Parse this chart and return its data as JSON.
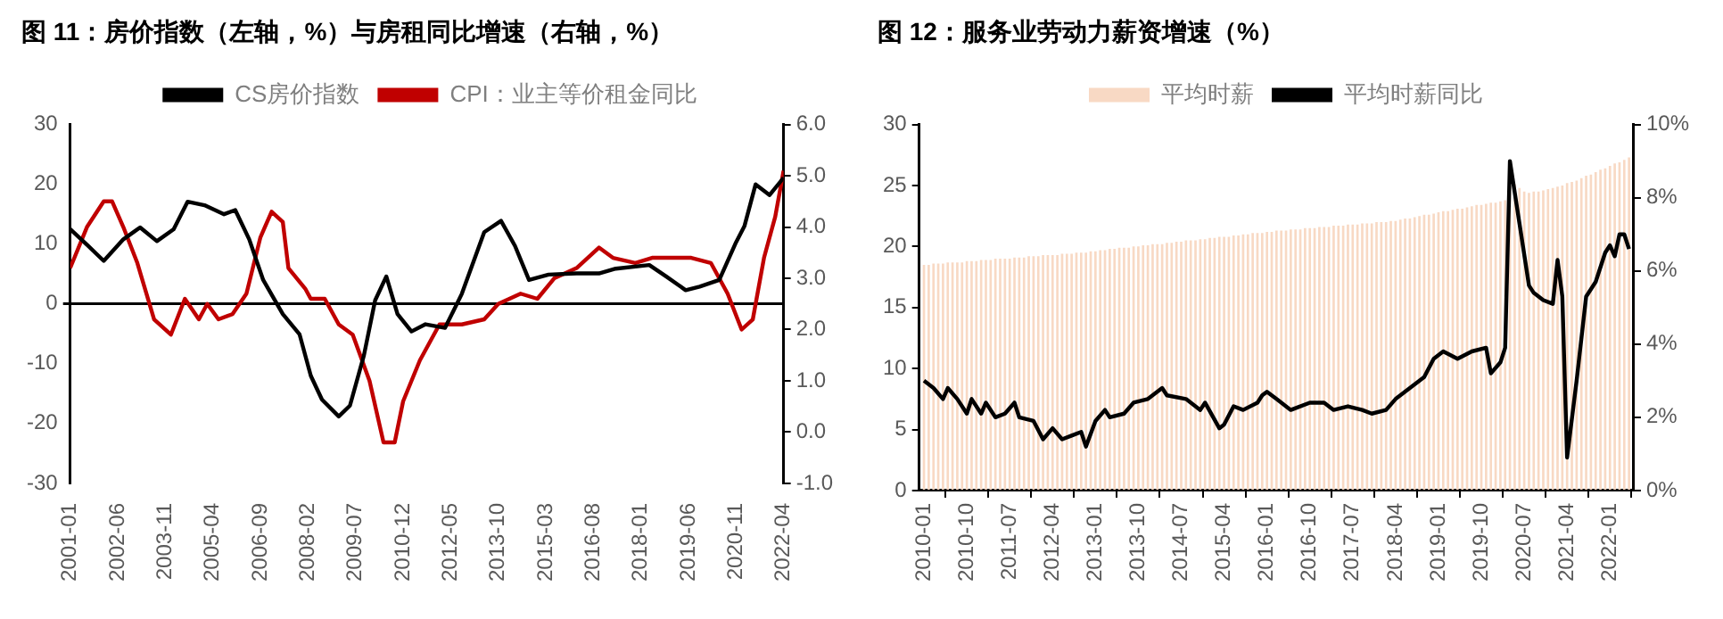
{
  "chart_data": [
    {
      "type": "line",
      "title": "图 11：房价指数（左轴，%）与房租同比增速（右轴，%）",
      "legend": "top",
      "xlim": [
        "2001-01",
        "2022-04"
      ],
      "xticks": [
        "2001-01",
        "2002-06",
        "2003-11",
        "2005-04",
        "2006-09",
        "2008-02",
        "2009-07",
        "2010-12",
        "2012-05",
        "2013-10",
        "2015-03",
        "2016-08",
        "2018-01",
        "2019-06",
        "2020-11",
        "2022-04"
      ],
      "ylim": [
        -30,
        30
      ],
      "yticks": [
        -30,
        -20,
        -10,
        0,
        10,
        20,
        30
      ],
      "y2lim": [
        -1,
        6
      ],
      "y2ticks": [
        {
          "value": -1,
          "label": "-1.0"
        },
        {
          "value": 0,
          "label": "0.0"
        },
        {
          "value": 1,
          "label": "1.0"
        },
        {
          "value": 2,
          "label": "2.0"
        },
        {
          "value": 3,
          "label": "3.0"
        },
        {
          "value": 4,
          "label": "4.0"
        },
        {
          "value": 5,
          "label": "5.0"
        },
        {
          "value": 6,
          "label": "6.0"
        }
      ],
      "series": [
        {
          "name": "CS房价指数",
          "color": "#000000",
          "x": [
            "2001-01",
            "2001-07",
            "2002-01",
            "2002-08",
            "2003-02",
            "2003-08",
            "2004-02",
            "2004-07",
            "2005-01",
            "2005-08",
            "2005-12",
            "2006-05",
            "2006-10",
            "2007-05",
            "2007-11",
            "2008-03",
            "2008-07",
            "2009-01",
            "2009-05",
            "2009-10",
            "2010-02",
            "2010-06",
            "2010-10",
            "2011-03",
            "2011-08",
            "2012-03",
            "2012-09",
            "2013-05",
            "2013-11",
            "2014-04",
            "2014-09",
            "2015-04",
            "2016-02",
            "2016-10",
            "2017-04",
            "2018-04",
            "2018-10",
            "2019-05",
            "2019-10",
            "2020-05",
            "2020-11",
            "2021-02",
            "2021-06",
            "2021-11",
            "2022-04"
          ],
          "values": [
            12.5,
            9.9,
            7.2,
            10.8,
            12.8,
            10.5,
            12.5,
            17.1,
            16.5,
            15,
            15.7,
            10.8,
            4,
            -1.7,
            -5.1,
            -12,
            -16,
            -18.8,
            -17,
            -8.6,
            0.6,
            4.6,
            -1.7,
            -4.6,
            -3.4,
            -4,
            1.7,
            12,
            13.9,
            9.7,
            4,
            4.9,
            5.1,
            5.1,
            5.9,
            6.5,
            4.6,
            2.3,
            2.9,
            4,
            10.3,
            13,
            20,
            18.2,
            21.1
          ]
        },
        {
          "name": "CPI：业主等价租金同比",
          "color": "#c00000",
          "axis": "y2",
          "x": [
            "2001-01",
            "2001-07",
            "2002-01",
            "2002-04",
            "2002-08",
            "2003-01",
            "2003-07",
            "2004-01",
            "2004-06",
            "2004-11",
            "2005-02",
            "2005-06",
            "2005-11",
            "2006-04",
            "2006-09",
            "2007-01",
            "2007-05",
            "2007-07",
            "2008-01",
            "2008-03",
            "2008-08",
            "2009-01",
            "2009-06",
            "2009-12",
            "2010-05",
            "2010-09",
            "2010-12",
            "2011-06",
            "2012-01",
            "2012-09",
            "2013-05",
            "2013-10",
            "2014-06",
            "2014-12",
            "2015-06",
            "2016-02",
            "2016-10",
            "2017-03",
            "2017-11",
            "2018-05",
            "2018-11",
            "2019-07",
            "2020-02",
            "2020-08",
            "2021-01",
            "2021-05",
            "2021-09",
            "2022-01",
            "2022-04"
          ],
          "values": [
            3.2,
            4.0,
            4.5,
            4.5,
            4.0,
            3.3,
            2.2,
            1.9,
            2.6,
            2.2,
            2.5,
            2.2,
            2.3,
            2.7,
            3.8,
            4.3,
            4.1,
            3.2,
            2.8,
            2.6,
            2.6,
            2.1,
            1.9,
            1.0,
            -0.2,
            -0.2,
            0.6,
            1.4,
            2.1,
            2.1,
            2.2,
            2.5,
            2.7,
            2.6,
            3.0,
            3.2,
            3.6,
            3.4,
            3.3,
            3.4,
            3.4,
            3.4,
            3.3,
            2.7,
            2.0,
            2.2,
            3.4,
            4.2,
            5.1
          ]
        }
      ]
    },
    {
      "type": "bar",
      "title": "图 12：服务业劳动力薪资增速（%）",
      "legend": "top",
      "x": [
        "2010-01",
        "2010-02",
        "2010-03",
        "2010-04",
        "2010-05",
        "2010-06",
        "2010-07",
        "2010-08",
        "2010-09",
        "2010-10",
        "2010-11",
        "2010-12",
        "2011-01",
        "2011-02",
        "2011-03",
        "2011-04",
        "2011-05",
        "2011-06",
        "2011-07",
        "2011-08",
        "2011-09",
        "2011-10",
        "2011-11",
        "2011-12",
        "2012-01",
        "2012-02",
        "2012-03",
        "2012-04",
        "2012-05",
        "2012-06",
        "2012-07",
        "2012-08",
        "2012-09",
        "2012-10",
        "2012-11",
        "2012-12",
        "2013-01",
        "2013-02",
        "2013-03",
        "2013-04",
        "2013-05",
        "2013-06",
        "2013-07",
        "2013-08",
        "2013-09",
        "2013-10",
        "2013-11",
        "2013-12",
        "2014-01",
        "2014-02",
        "2014-03",
        "2014-04",
        "2014-05",
        "2014-06",
        "2014-07",
        "2014-08",
        "2014-09",
        "2014-10",
        "2014-11",
        "2014-12",
        "2015-01",
        "2015-02",
        "2015-03",
        "2015-04",
        "2015-05",
        "2015-06",
        "2015-07",
        "2015-08",
        "2015-09",
        "2015-10",
        "2015-11",
        "2015-12",
        "2016-01",
        "2016-02",
        "2016-03",
        "2016-04",
        "2016-05",
        "2016-06",
        "2016-07",
        "2016-08",
        "2016-09",
        "2016-10",
        "2016-11",
        "2016-12",
        "2017-01",
        "2017-02",
        "2017-03",
        "2017-04",
        "2017-05",
        "2017-06",
        "2017-07",
        "2017-08",
        "2017-09",
        "2017-10",
        "2017-11",
        "2017-12",
        "2018-01",
        "2018-02",
        "2018-03",
        "2018-04",
        "2018-05",
        "2018-06",
        "2018-07",
        "2018-08",
        "2018-09",
        "2018-10",
        "2018-11",
        "2018-12",
        "2019-01",
        "2019-02",
        "2019-03",
        "2019-04",
        "2019-05",
        "2019-06",
        "2019-07",
        "2019-08",
        "2019-09",
        "2019-10",
        "2019-11",
        "2019-12",
        "2020-01",
        "2020-02",
        "2020-03",
        "2020-04",
        "2020-05",
        "2020-06",
        "2020-07",
        "2020-08",
        "2020-09",
        "2020-10",
        "2020-11",
        "2020-12",
        "2021-01",
        "2021-02",
        "2021-03",
        "2021-04",
        "2021-05",
        "2021-06",
        "2021-07",
        "2021-08",
        "2021-09",
        "2021-10",
        "2021-11",
        "2021-12",
        "2022-01",
        "2022-02",
        "2022-03",
        "2022-04",
        "2022-05"
      ],
      "xlim": [
        "2009-12",
        "2022-06"
      ],
      "xticks": [
        "2010-01",
        "2010-10",
        "2011-07",
        "2012-04",
        "2013-01",
        "2013-10",
        "2014-07",
        "2015-04",
        "2016-01",
        "2016-10",
        "2017-07",
        "2018-04",
        "2019-01",
        "2019-10",
        "2020-07",
        "2021-04",
        "2022-01"
      ],
      "ylim": [
        0,
        30
      ],
      "yticks": [
        0,
        5,
        10,
        15,
        20,
        25,
        30
      ],
      "y2lim": [
        0,
        10
      ],
      "y2ticks": [
        {
          "value": 0,
          "label": "0%"
        },
        {
          "value": 2,
          "label": "2%"
        },
        {
          "value": 4,
          "label": "4%"
        },
        {
          "value": 6,
          "label": "6%"
        },
        {
          "value": 8,
          "label": "8%"
        },
        {
          "value": 10,
          "label": "10%"
        }
      ],
      "series": [
        {
          "name": "平均时薪",
          "color": "#f8d9c4",
          "values": [
            18.5,
            18.5,
            18.6,
            18.6,
            18.6,
            18.7,
            18.7,
            18.7,
            18.7,
            18.8,
            18.8,
            18.8,
            18.9,
            18.9,
            18.9,
            19.0,
            19.0,
            19.0,
            19.0,
            19.1,
            19.1,
            19.1,
            19.2,
            19.2,
            19.2,
            19.3,
            19.3,
            19.3,
            19.3,
            19.4,
            19.4,
            19.4,
            19.5,
            19.5,
            19.5,
            19.6,
            19.6,
            19.7,
            19.7,
            19.8,
            19.8,
            19.9,
            19.9,
            19.9,
            20.0,
            20.0,
            20.1,
            20.1,
            20.2,
            20.2,
            20.2,
            20.3,
            20.3,
            20.4,
            20.4,
            20.5,
            20.5,
            20.5,
            20.6,
            20.6,
            20.7,
            20.7,
            20.8,
            20.8,
            20.8,
            20.9,
            20.9,
            21.0,
            21.0,
            21.1,
            21.1,
            21.1,
            21.2,
            21.2,
            21.3,
            21.3,
            21.3,
            21.4,
            21.4,
            21.4,
            21.5,
            21.5,
            21.5,
            21.6,
            21.6,
            21.6,
            21.7,
            21.7,
            21.7,
            21.8,
            21.8,
            21.8,
            21.9,
            21.9,
            21.9,
            22.0,
            22.0,
            22.0,
            22.1,
            22.1,
            22.2,
            22.3,
            22.3,
            22.4,
            22.5,
            22.6,
            22.6,
            22.7,
            22.8,
            22.9,
            22.9,
            23.0,
            23.1,
            23.1,
            23.2,
            23.3,
            23.4,
            23.4,
            23.5,
            23.6,
            23.6,
            23.7,
            23.8,
            25.0,
            25.1,
            24.8,
            24.5,
            24.4,
            24.5,
            24.5,
            24.6,
            24.7,
            24.8,
            24.9,
            25.0,
            25.2,
            25.3,
            25.4,
            25.6,
            25.8,
            25.9,
            26.1,
            26.3,
            26.4,
            26.6,
            26.8,
            26.9,
            27.1,
            27.3
          ]
        },
        {
          "name": "平均时薪同比",
          "type": "line",
          "axis": "y2",
          "color": "#000000",
          "x": [
            "2010-01",
            "2010-03",
            "2010-05",
            "2010-06",
            "2010-08",
            "2010-10",
            "2010-11",
            "2011-01",
            "2011-02",
            "2011-04",
            "2011-06",
            "2011-08",
            "2011-09",
            "2011-12",
            "2012-02",
            "2012-04",
            "2012-06",
            "2012-08",
            "2012-10",
            "2012-11",
            "2013-01",
            "2013-03",
            "2013-04",
            "2013-07",
            "2013-09",
            "2013-12",
            "2014-03",
            "2014-04",
            "2014-08",
            "2014-11",
            "2014-12",
            "2015-03",
            "2015-04",
            "2015-06",
            "2015-08",
            "2015-11",
            "2015-12",
            "2016-01",
            "2016-03",
            "2016-06",
            "2016-10",
            "2017-01",
            "2017-03",
            "2017-06",
            "2017-09",
            "2017-11",
            "2018-02",
            "2018-04",
            "2018-07",
            "2018-10",
            "2018-12",
            "2019-02",
            "2019-05",
            "2019-08",
            "2019-11",
            "2019-12",
            "2020-02",
            "2020-03",
            "2020-04",
            "2020-06",
            "2020-08",
            "2020-09",
            "2020-11",
            "2021-01",
            "2021-02",
            "2021-03",
            "2021-04",
            "2021-06",
            "2021-08",
            "2021-10",
            "2021-12",
            "2022-01",
            "2022-02",
            "2022-03",
            "2022-04",
            "2022-05"
          ],
          "values": [
            3.0,
            2.8,
            2.5,
            2.8,
            2.5,
            2.1,
            2.5,
            2.1,
            2.4,
            2.0,
            2.1,
            2.4,
            2.0,
            1.9,
            1.4,
            1.7,
            1.4,
            1.5,
            1.6,
            1.2,
            1.9,
            2.2,
            2.0,
            2.1,
            2.4,
            2.5,
            2.8,
            2.6,
            2.5,
            2.2,
            2.4,
            1.7,
            1.8,
            2.3,
            2.2,
            2.4,
            2.6,
            2.7,
            2.5,
            2.2,
            2.4,
            2.4,
            2.2,
            2.3,
            2.2,
            2.1,
            2.2,
            2.5,
            2.8,
            3.1,
            3.6,
            3.8,
            3.6,
            3.8,
            3.9,
            3.2,
            3.5,
            3.9,
            9.0,
            7.3,
            5.6,
            5.4,
            5.2,
            5.1,
            6.3,
            5.3,
            0.9,
            3.0,
            5.3,
            5.7,
            6.5,
            6.7,
            6.4,
            7.0,
            7.0,
            6.6
          ]
        }
      ]
    }
  ]
}
